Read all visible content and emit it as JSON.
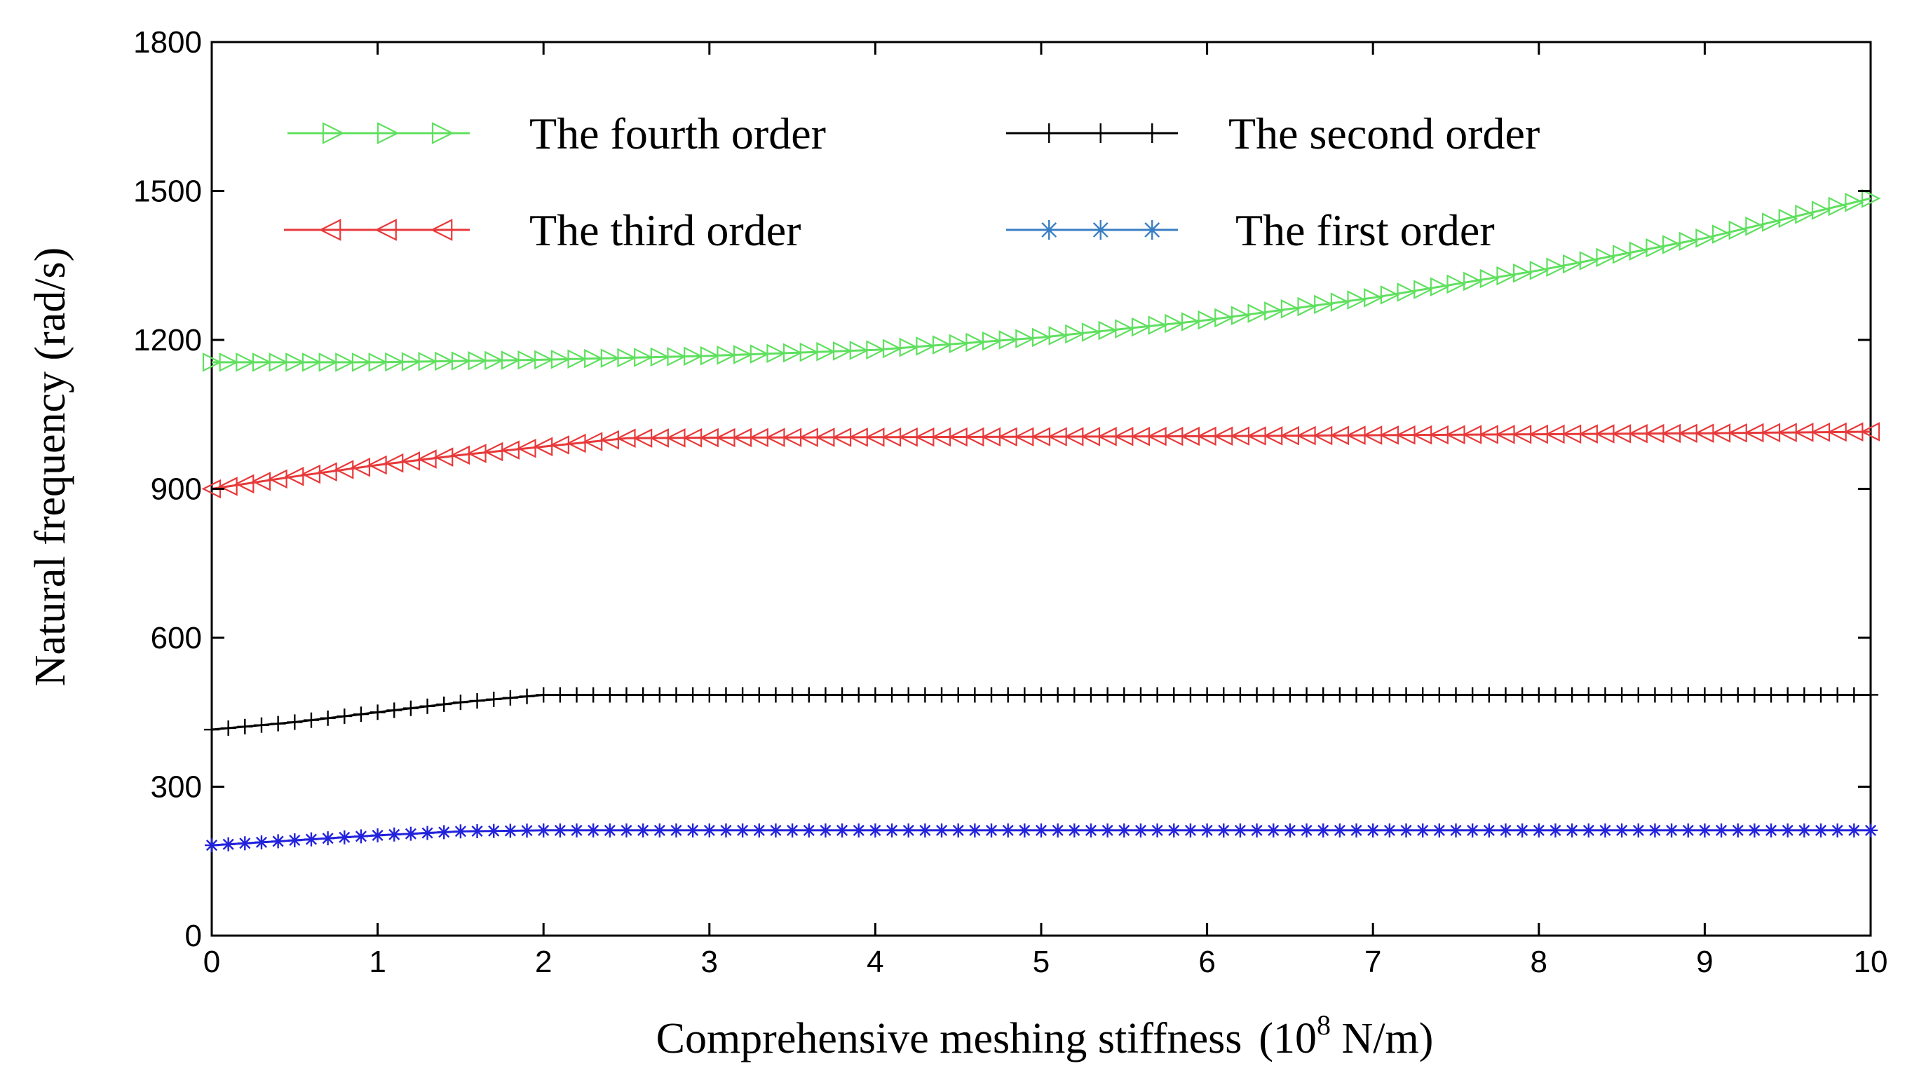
{
  "chart_data": {
    "type": "line",
    "xlabel": "Comprehensive meshing stiffness",
    "xlabel_unit": "(10",
    "xlabel_unit_exp": "8",
    "xlabel_unit_tail": " N/m)",
    "ylabel": "Natural frequency (rad/s)",
    "xlim": [
      0,
      10
    ],
    "ylim": [
      0,
      1800
    ],
    "xticks": [
      0,
      1,
      2,
      3,
      4,
      5,
      6,
      7,
      8,
      9,
      10
    ],
    "yticks": [
      0,
      300,
      600,
      900,
      1200,
      1500,
      1800
    ],
    "grid": false,
    "legend_placement": "top",
    "series": [
      {
        "name": "The fourth order",
        "color": "#5fe05f",
        "marker": "triangle-right",
        "x": [
          0,
          1,
          2,
          3,
          4,
          5,
          6,
          7,
          8,
          9,
          10
        ],
        "values": [
          1155,
          1155,
          1160,
          1168,
          1180,
          1205,
          1240,
          1285,
          1340,
          1405,
          1485
        ]
      },
      {
        "name": "The second order",
        "color": "#000000",
        "marker": "plus",
        "x": [
          0,
          0.5,
          1,
          1.5,
          2,
          3,
          4,
          5,
          6,
          7,
          8,
          9,
          10
        ],
        "values": [
          415,
          430,
          450,
          470,
          485,
          485,
          485,
          485,
          485,
          485,
          485,
          485,
          485
        ]
      },
      {
        "name": "The third order",
        "color": "#e8393a",
        "marker": "triangle-left",
        "x": [
          0,
          0.5,
          1,
          1.5,
          2,
          2.5,
          3,
          4,
          5,
          6,
          7,
          8,
          9,
          10
        ],
        "values": [
          900,
          925,
          948,
          968,
          985,
          1002,
          1003,
          1004,
          1005,
          1006,
          1008,
          1010,
          1012,
          1015
        ]
      },
      {
        "name": "The first order",
        "color": "#2222dd",
        "legend_color": "#3a7fc4",
        "marker": "star",
        "x": [
          0,
          0.5,
          1,
          1.5,
          2,
          3,
          4,
          5,
          6,
          7,
          8,
          9,
          10
        ],
        "values": [
          182,
          192,
          202,
          210,
          212,
          212,
          212,
          212,
          212,
          212,
          212,
          212,
          212
        ]
      }
    ]
  }
}
